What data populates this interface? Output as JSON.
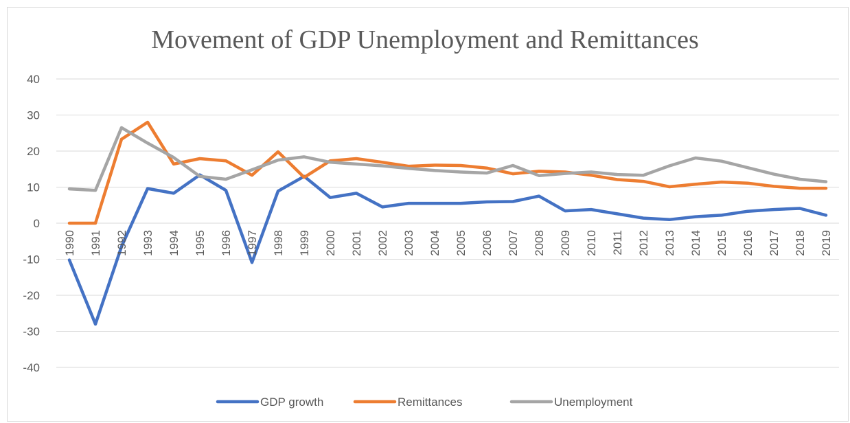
{
  "chart_data": {
    "type": "line",
    "title": "Movement of GDP Unemployment and Remittances",
    "xlabel": "",
    "ylabel": "",
    "ylim": [
      -40,
      40
    ],
    "yticks": [
      "40",
      "30",
      "20",
      "10",
      "0",
      "-10",
      "-20",
      "-30",
      "-40"
    ],
    "grid": true,
    "legend": "bottom",
    "categories": [
      "1990",
      "1991",
      "1992",
      "1993",
      "1994",
      "1995",
      "1996",
      "1997",
      "1998",
      "1999",
      "2000",
      "2001",
      "2002",
      "2003",
      "2004",
      "2005",
      "2006",
      "2007",
      "2008",
      "2009",
      "2010",
      "2011",
      "2012",
      "2013",
      "2014",
      "2015",
      "2016",
      "2017",
      "2018",
      "2019"
    ],
    "series": [
      {
        "name": "GDP growth",
        "color": "#4472c4",
        "values": [
          -10.2,
          -28.0,
          -6.5,
          9.6,
          8.3,
          13.4,
          9.1,
          -10.9,
          8.9,
          13.0,
          7.1,
          8.3,
          4.5,
          5.5,
          5.5,
          5.5,
          5.9,
          6.0,
          7.5,
          3.4,
          3.8,
          2.6,
          1.4,
          1.0,
          1.8,
          2.2,
          3.3,
          3.8,
          4.1,
          2.2
        ]
      },
      {
        "name": "Remittances",
        "color": "#ed7d31",
        "values": [
          0.0,
          0.0,
          23.3,
          28.0,
          16.4,
          17.9,
          17.3,
          13.3,
          19.8,
          12.7,
          17.3,
          17.9,
          16.9,
          15.8,
          16.1,
          16.0,
          15.3,
          13.7,
          14.4,
          14.2,
          13.3,
          12.1,
          11.6,
          10.1,
          10.8,
          11.4,
          11.1,
          10.2,
          9.7,
          9.7
        ]
      },
      {
        "name": "Unemployment",
        "color": "#a5a5a5",
        "values": [
          9.5,
          9.1,
          26.5,
          22.2,
          18.2,
          13.0,
          12.2,
          14.8,
          17.5,
          18.4,
          16.9,
          16.4,
          15.9,
          15.2,
          14.6,
          14.2,
          13.9,
          16.0,
          13.2,
          13.8,
          14.2,
          13.5,
          13.3,
          15.9,
          18.1,
          17.2,
          15.4,
          13.6,
          12.2,
          11.5
        ]
      }
    ]
  }
}
